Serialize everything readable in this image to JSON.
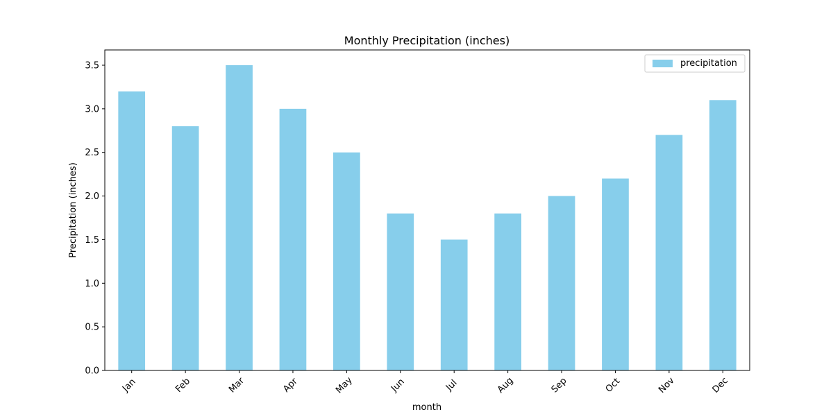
{
  "chart_data": {
    "type": "bar",
    "title": "Monthly Precipitation (inches)",
    "xlabel": "month",
    "ylabel": "Precipitation (inches)",
    "categories": [
      "Jan",
      "Feb",
      "Mar",
      "Apr",
      "May",
      "Jun",
      "Jul",
      "Aug",
      "Sep",
      "Oct",
      "Nov",
      "Dec"
    ],
    "series": [
      {
        "name": "precipitation",
        "values": [
          3.2,
          2.8,
          3.5,
          3.0,
          2.5,
          1.8,
          1.5,
          1.8,
          2.0,
          2.2,
          2.7,
          3.1
        ],
        "color": "#87ceeb"
      }
    ],
    "ylim": [
      0,
      3.675
    ],
    "yticks": [
      "0.0",
      "0.5",
      "1.0",
      "1.5",
      "2.0",
      "2.5",
      "3.0",
      "3.5"
    ],
    "ytick_values": [
      0,
      0.5,
      1.0,
      1.5,
      2.0,
      2.5,
      3.0,
      3.5
    ],
    "legend_position": "top-right",
    "grid": false
  }
}
